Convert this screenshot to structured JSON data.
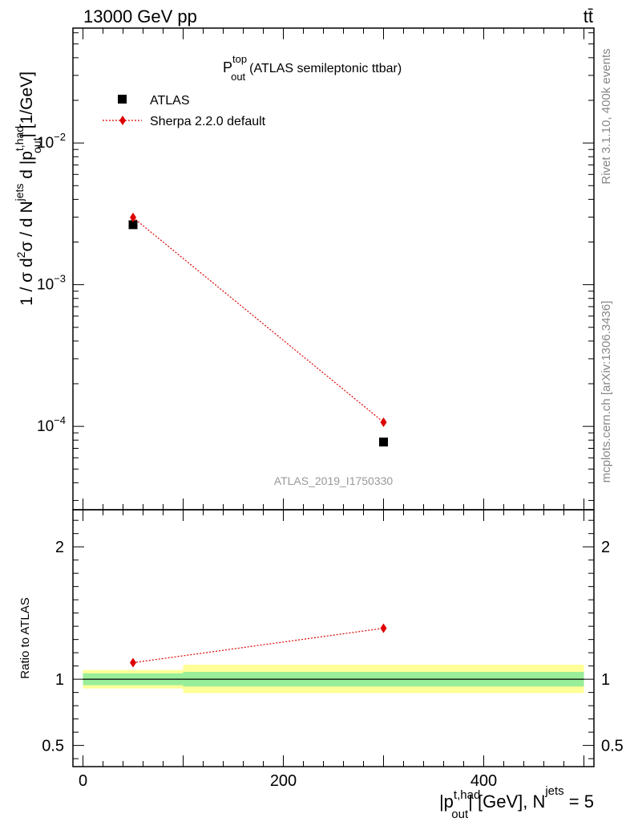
{
  "header": {
    "left": "13000 GeV pp",
    "right": "tt̄"
  },
  "side": {
    "rivet": "Rivet 3.1.10,  400k events",
    "site": "mcplots.cern.ch [arXiv:1306.3436]"
  },
  "chart_data": [
    {
      "type": "scatter",
      "panel": "main",
      "title": {
        "main": "P",
        "sup": "top",
        "sub": "out",
        "suffix": "(ATLAS semileptonic ttbar)"
      },
      "ylabel": {
        "part1": "1 / σ d",
        "sup1": "2",
        "part2": "σ / d N",
        "sup2": "jets",
        "part3": " d |p",
        "sup3": "t,had",
        "sub3": "out",
        "part4": "| [1/GeV]"
      },
      "yscale": "log",
      "xlim": [
        -10,
        510
      ],
      "ylim": [
        2.58e-05,
        0.0647
      ],
      "yticks": [
        {
          "value": 0.0001,
          "base": "10",
          "exp": "−4"
        },
        {
          "value": 0.001,
          "base": "10",
          "exp": "−3"
        },
        {
          "value": 0.01,
          "base": "10",
          "exp": "−2"
        }
      ],
      "watermark": "ATLAS_2019_I1750330",
      "legend": {
        "position": "top-left",
        "entries": [
          {
            "label": "ATLAS",
            "marker": "square",
            "color": "#000000"
          },
          {
            "label": "Sherpa 2.2.0 default",
            "marker": "diamond",
            "color": "#dd0000",
            "line": "dotted"
          }
        ]
      },
      "series": [
        {
          "name": "ATLAS",
          "x": [
            50,
            300
          ],
          "y": [
            0.00265,
            7.75e-05
          ],
          "marker": "square",
          "color": "#000000",
          "bins": [
            [
              0,
              100
            ],
            [
              100,
              500
            ]
          ]
        },
        {
          "name": "Sherpa 2.2.0 default",
          "x": [
            50,
            300
          ],
          "y": [
            0.00298,
            0.000107
          ],
          "marker": "diamond",
          "color": "#dd0000"
        }
      ]
    },
    {
      "type": "line",
      "panel": "ratio",
      "ylabel": "Ratio to ATLAS",
      "xlabel": {
        "part1": "|p",
        "sup1": "t,had",
        "sub1": "out",
        "part2": "| [GeV], N",
        "sup2": "jets",
        "part3": " = 5"
      },
      "xlim": [
        -10,
        510
      ],
      "ylim": [
        0.34,
        2.28
      ],
      "xticks": [
        "0",
        "200",
        "400"
      ],
      "xtick_values": [
        0,
        200,
        400
      ],
      "yticks": [
        "0.5",
        "1",
        "2"
      ],
      "ytick_values": [
        0.5,
        1,
        2
      ],
      "bands": [
        {
          "x": [
            0,
            100
          ],
          "stat": [
            0.955,
            1.045
          ],
          "total": [
            0.93,
            1.07
          ]
        },
        {
          "x": [
            100,
            500
          ],
          "stat": [
            0.945,
            1.055
          ],
          "total": [
            0.895,
            1.11
          ]
        }
      ],
      "series": [
        {
          "name": "Sherpa 2.2.0 default",
          "x": [
            50,
            300
          ],
          "y": [
            1.125,
            1.385
          ],
          "color": "#dd0000"
        }
      ],
      "reference": 1.0,
      "colors": {
        "stat_band": "#99ee99",
        "total_band": "#ffff99"
      }
    }
  ]
}
